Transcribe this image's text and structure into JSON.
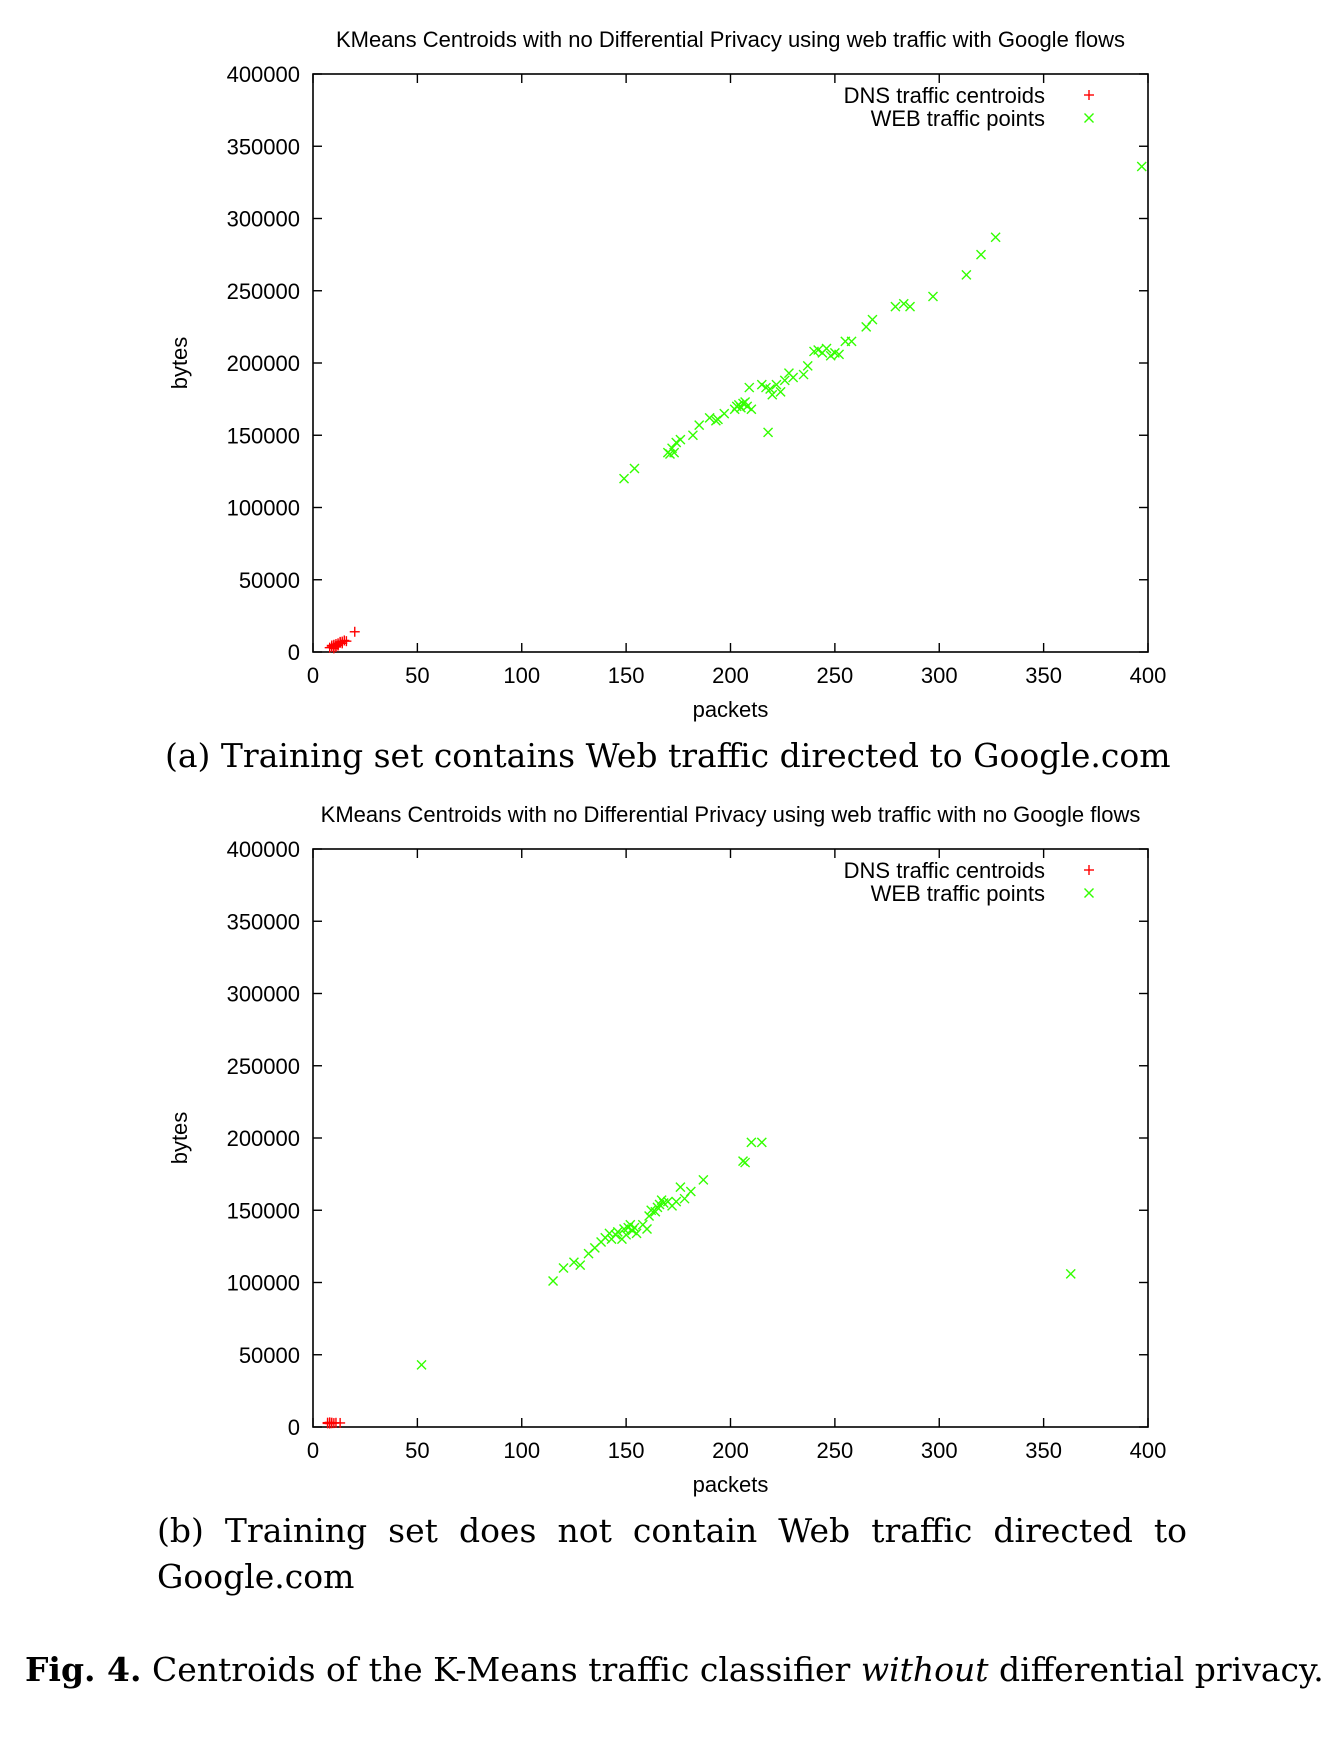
{
  "chart_data": [
    {
      "type": "scatter",
      "title": "KMeans Centroids with no Differential Privacy using web traffic with Google flows",
      "xlabel": "packets",
      "ylabel": "bytes",
      "xlim": [
        0,
        400
      ],
      "ylim": [
        0,
        400000
      ],
      "xticks": [
        "0",
        "50",
        "100",
        "150",
        "200",
        "250",
        "300",
        "350",
        "400"
      ],
      "yticks": [
        "0",
        "50000",
        "100000",
        "150000",
        "200000",
        "250000",
        "300000",
        "350000",
        "400000"
      ],
      "legend_position": "top-right",
      "grid": false,
      "series": [
        {
          "name": "DNS traffic centroids",
          "marker": "+",
          "color": "#ff0000",
          "points": [
            [
              8,
              3000
            ],
            [
              9,
              3500
            ],
            [
              9,
              4500
            ],
            [
              10,
              4000
            ],
            [
              10,
              5000
            ],
            [
              11,
              4200
            ],
            [
              11,
              5500
            ],
            [
              12,
              6000
            ],
            [
              12,
              5000
            ],
            [
              13,
              6500
            ],
            [
              13,
              7000
            ],
            [
              14,
              7200
            ],
            [
              15,
              8000
            ],
            [
              16,
              7500
            ],
            [
              11,
              3500
            ],
            [
              10,
              2500
            ],
            [
              12,
              4500
            ],
            [
              14,
              6000
            ],
            [
              20,
              14000
            ]
          ]
        },
        {
          "name": "WEB traffic points",
          "marker": "x",
          "color": "#33ff00",
          "points": [
            [
              149,
              120000
            ],
            [
              154,
              127000
            ],
            [
              170,
              138000
            ],
            [
              171,
              137000
            ],
            [
              172,
              141000
            ],
            [
              173,
              138000
            ],
            [
              174,
              145000
            ],
            [
              176,
              147000
            ],
            [
              182,
              150000
            ],
            [
              185,
              157000
            ],
            [
              190,
              162000
            ],
            [
              193,
              160000
            ],
            [
              194,
              161000
            ],
            [
              197,
              165000
            ],
            [
              202,
              168000
            ],
            [
              203,
              170000
            ],
            [
              204,
              171000
            ],
            [
              205,
              169000
            ],
            [
              206,
              172000
            ],
            [
              207,
              173000
            ],
            [
              208,
              170000
            ],
            [
              209,
              183000
            ],
            [
              210,
              168000
            ],
            [
              215,
              185000
            ],
            [
              217,
              183000
            ],
            [
              218,
              152000
            ],
            [
              219,
              182000
            ],
            [
              220,
              178000
            ],
            [
              222,
              185000
            ],
            [
              224,
              180000
            ],
            [
              226,
              188000
            ],
            [
              228,
              193000
            ],
            [
              230,
              190000
            ],
            [
              235,
              192000
            ],
            [
              237,
              198000
            ],
            [
              240,
              208000
            ],
            [
              242,
              209000
            ],
            [
              244,
              207000
            ],
            [
              246,
              210000
            ],
            [
              248,
              205000
            ],
            [
              250,
              207000
            ],
            [
              252,
              206000
            ],
            [
              255,
              215000
            ],
            [
              258,
              215000
            ],
            [
              265,
              225000
            ],
            [
              268,
              230000
            ],
            [
              279,
              239000
            ],
            [
              283,
              241000
            ],
            [
              286,
              239000
            ],
            [
              297,
              246000
            ],
            [
              313,
              261000
            ],
            [
              320,
              275000
            ],
            [
              327,
              287000
            ],
            [
              397,
              336000
            ]
          ]
        }
      ]
    },
    {
      "type": "scatter",
      "title": "KMeans Centroids with no Differential Privacy using web traffic with no Google flows",
      "xlabel": "packets",
      "ylabel": "bytes",
      "xlim": [
        0,
        400
      ],
      "ylim": [
        0,
        400000
      ],
      "xticks": [
        "0",
        "50",
        "100",
        "150",
        "200",
        "250",
        "300",
        "350",
        "400"
      ],
      "yticks": [
        "0",
        "50000",
        "100000",
        "150000",
        "200000",
        "250000",
        "300000",
        "350000",
        "400000"
      ],
      "legend_position": "top-right",
      "grid": false,
      "series": [
        {
          "name": "DNS traffic centroids",
          "marker": "+",
          "color": "#ff0000",
          "points": [
            [
              7,
              2500
            ],
            [
              8,
              2800
            ],
            [
              8,
              3200
            ],
            [
              9,
              2600
            ],
            [
              9,
              3000
            ],
            [
              10,
              2700
            ],
            [
              11,
              2900
            ],
            [
              13,
              2800
            ],
            [
              7,
              3000
            ],
            [
              8,
              2400
            ]
          ]
        },
        {
          "name": "WEB traffic points",
          "marker": "x",
          "color": "#33ff00",
          "points": [
            [
              52,
              43000
            ],
            [
              115,
              101000
            ],
            [
              120,
              110000
            ],
            [
              125,
              114000
            ],
            [
              128,
              112000
            ],
            [
              132,
              120000
            ],
            [
              135,
              124000
            ],
            [
              138,
              128000
            ],
            [
              140,
              131000
            ],
            [
              142,
              134000
            ],
            [
              143,
              130000
            ],
            [
              145,
              133000
            ],
            [
              146,
              135000
            ],
            [
              148,
              130000
            ],
            [
              149,
              137000
            ],
            [
              150,
              133000
            ],
            [
              151,
              138000
            ],
            [
              152,
              140000
            ],
            [
              153,
              136000
            ],
            [
              154,
              138000
            ],
            [
              155,
              134000
            ],
            [
              158,
              140000
            ],
            [
              160,
              137000
            ],
            [
              161,
              146000
            ],
            [
              162,
              150000
            ],
            [
              164,
              149000
            ],
            [
              165,
              152000
            ],
            [
              166,
              154000
            ],
            [
              167,
              157000
            ],
            [
              168,
              155000
            ],
            [
              170,
              156000
            ],
            [
              172,
              153000
            ],
            [
              174,
              156000
            ],
            [
              176,
              166000
            ],
            [
              178,
              158000
            ],
            [
              181,
              163000
            ],
            [
              187,
              171000
            ],
            [
              206,
              184000
            ],
            [
              207,
              183000
            ],
            [
              210,
              197000
            ],
            [
              215,
              197000
            ],
            [
              363,
              106000
            ]
          ]
        }
      ]
    }
  ],
  "captions": {
    "a": "(a) Training set contains Web traffic directed to Google.com",
    "b": "(b) Training set does not contain Web traffic directed to Google.com"
  },
  "figure_caption": {
    "label": "Fig. 4.",
    "text_before": "Centroids of the K-Means traffic classifier",
    "emphasis": "without",
    "text_after": "differential privacy."
  }
}
